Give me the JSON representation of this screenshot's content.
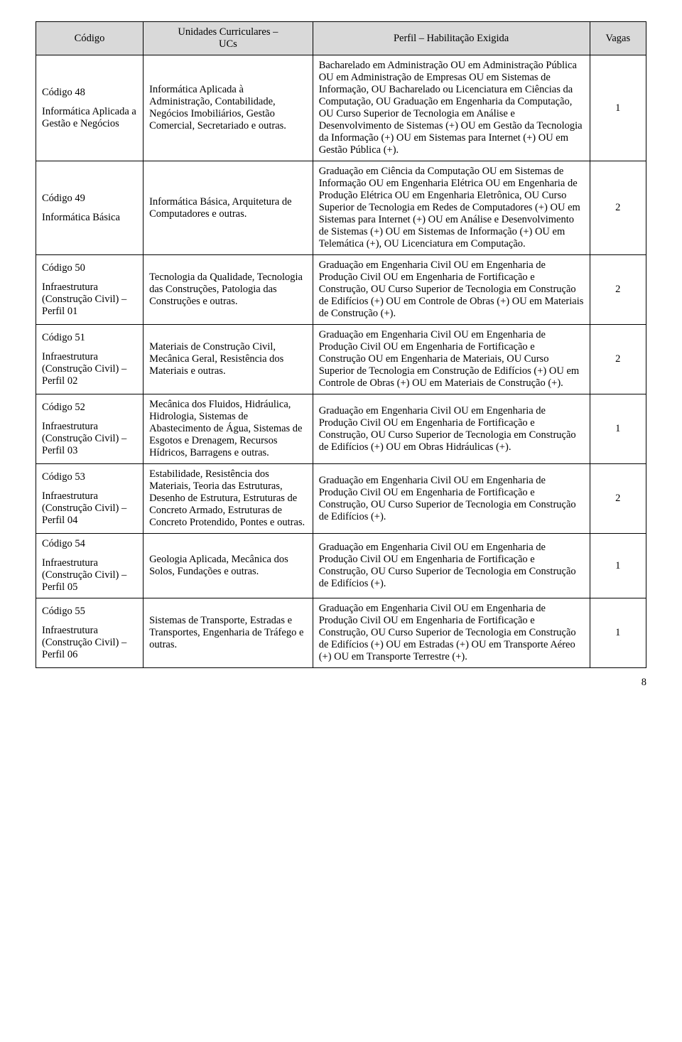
{
  "headers": {
    "codigo": "Código",
    "ucs_line1": "Unidades Curriculares –",
    "ucs_line2": "UCs",
    "perfil": "Perfil – Habilitação Exigida",
    "vagas": "Vagas"
  },
  "rows": [
    {
      "codigo": "Código 48",
      "codigo_sub": "Informática Aplicada a Gestão e Negócios",
      "ucs": "Informática Aplicada à Administração, Contabilidade, Negócios Imobiliários, Gestão Comercial, Secretariado e outras.",
      "perfil": "Bacharelado em Administração OU em Administração Pública OU em Administração de Empresas OU em Sistemas de Informação, OU Bacharelado ou Licenciatura em Ciências da Computação, OU Graduação em Engenharia da Computação, OU Curso Superior de Tecnologia em Análise e Desenvolvimento de Sistemas (+) OU em Gestão da Tecnologia da Informação (+) OU em Sistemas para Internet (+) OU em Gestão Pública (+).",
      "vagas": "1"
    },
    {
      "codigo": "Código 49",
      "codigo_sub": "Informática Básica",
      "ucs": "Informática Básica, Arquitetura de Computadores e outras.",
      "perfil": "Graduação em Ciência da Computação OU em Sistemas de Informação OU em Engenharia Elétrica OU em Engenharia de Produção Elétrica OU em Engenharia Eletrônica, OU Curso Superior de Tecnologia em Redes de Computadores (+) OU em Sistemas para Internet (+) OU em Análise e Desenvolvimento de Sistemas (+) OU em Sistemas de Informação (+) OU em Telemática (+), OU Licenciatura em Computação.",
      "vagas": "2"
    },
    {
      "codigo": "Código 50",
      "codigo_sub": "Infraestrutura (Construção Civil) – Perfil 01",
      "ucs": "Tecnologia da Qualidade, Tecnologia das Construções, Patologia das Construções e outras.",
      "perfil": "Graduação em Engenharia Civil OU em Engenharia de Produção Civil OU em Engenharia de Fortificação e Construção, OU Curso Superior de Tecnologia em Construção de Edifícios (+) OU em Controle de Obras (+) OU em Materiais de Construção (+).",
      "vagas": "2"
    },
    {
      "codigo": "Código 51",
      "codigo_sub": "Infraestrutura (Construção Civil) – Perfil 02",
      "ucs": "Materiais de Construção Civil, Mecânica Geral, Resistência dos Materiais e outras.",
      "perfil": "Graduação em Engenharia Civil OU em Engenharia de Produção Civil OU em Engenharia de Fortificação e Construção OU em Engenharia de Materiais, OU Curso Superior de Tecnologia em Construção de Edifícios (+) OU em Controle de Obras (+) OU em Materiais de Construção (+).",
      "vagas": "2"
    },
    {
      "codigo": "Código 52",
      "codigo_sub": "Infraestrutura (Construção Civil) – Perfil 03",
      "ucs": "Mecânica dos Fluidos, Hidráulica, Hidrologia, Sistemas de Abastecimento de Água, Sistemas de Esgotos e Drenagem, Recursos Hídricos, Barragens e outras.",
      "perfil": "Graduação em Engenharia Civil OU em Engenharia de Produção Civil OU em Engenharia de Fortificação e Construção, OU Curso Superior de Tecnologia em Construção de Edifícios (+) OU em Obras Hidráulicas (+).",
      "vagas": "1"
    },
    {
      "codigo": "Código 53",
      "codigo_sub": "Infraestrutura (Construção Civil) – Perfil 04",
      "ucs": "Estabilidade, Resistência dos Materiais, Teoria das Estruturas, Desenho de Estrutura, Estruturas de Concreto Armado, Estruturas de Concreto Protendido, Pontes e outras.",
      "perfil": "Graduação em Engenharia Civil OU em Engenharia de Produção Civil OU em Engenharia de Fortificação e Construção, OU Curso Superior de Tecnologia em Construção de Edifícios (+).",
      "vagas": "2"
    },
    {
      "codigo": "Código 54",
      "codigo_sub": "Infraestrutura (Construção Civil) – Perfil 05",
      "ucs": "Geologia Aplicada, Mecânica dos Solos, Fundações e outras.",
      "perfil": "Graduação em Engenharia Civil OU em Engenharia de Produção Civil OU em Engenharia de Fortificação e Construção, OU Curso Superior de Tecnologia em Construção de Edifícios (+).",
      "vagas": "1"
    },
    {
      "codigo": "Código 55",
      "codigo_sub": "Infraestrutura (Construção Civil) – Perfil 06",
      "ucs": "Sistemas de Transporte, Estradas e Transportes, Engenharia de Tráfego e outras.",
      "perfil": "Graduação em Engenharia Civil OU em Engenharia de Produção Civil OU em Engenharia de Fortificação e Construção, OU Curso Superior de Tecnologia em Construção de Edifícios (+) OU em Estradas (+) OU em Transporte Aéreo (+) OU em Transporte Terrestre (+).",
      "vagas": "1"
    }
  ],
  "page_number": "8"
}
